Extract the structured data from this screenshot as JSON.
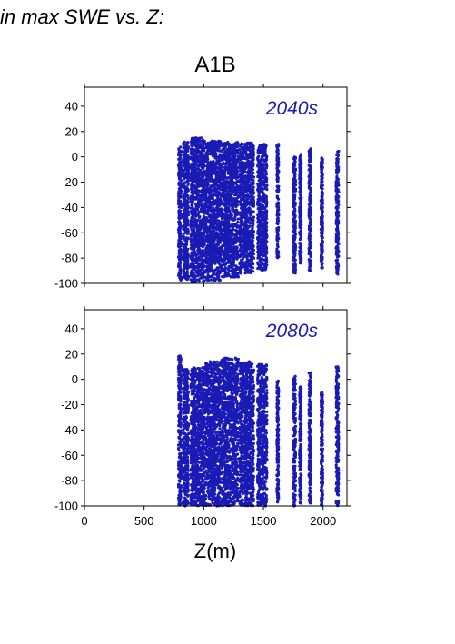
{
  "heading": "in max SWE vs. Z:",
  "scenario": "A1B",
  "accent_color": "#1a1ab4",
  "chart_data": [
    {
      "type": "scatter",
      "annotation": "2040s",
      "xlim": [
        0,
        2200
      ],
      "ylim": [
        -100,
        55
      ],
      "yticks": [
        40,
        20,
        0,
        -20,
        -40,
        -60,
        -80,
        -100
      ],
      "xticks": [
        0,
        500,
        1000,
        1500,
        2000
      ],
      "show_xticklabels": false,
      "xlabel": "",
      "clusters": [
        {
          "x": 800,
          "width": 25,
          "ymin": -98,
          "ymax": 8
        },
        {
          "x": 850,
          "width": 45,
          "ymin": -97,
          "ymax": 12
        },
        {
          "x": 950,
          "width": 120,
          "ymin": -99,
          "ymax": 15
        },
        {
          "x": 1080,
          "width": 130,
          "ymin": -98,
          "ymax": 13
        },
        {
          "x": 1220,
          "width": 140,
          "ymin": -95,
          "ymax": 12
        },
        {
          "x": 1360,
          "width": 120,
          "ymin": -92,
          "ymax": 11
        },
        {
          "x": 1490,
          "width": 80,
          "ymin": -90,
          "ymax": 10
        },
        {
          "x": 1620,
          "width": 15,
          "ymin": -80,
          "ymax": 10
        },
        {
          "x": 1760,
          "width": 20,
          "ymin": -92,
          "ymax": 0
        },
        {
          "x": 1810,
          "width": 15,
          "ymin": -85,
          "ymax": 3
        },
        {
          "x": 1890,
          "width": 18,
          "ymin": -90,
          "ymax": 7
        },
        {
          "x": 1990,
          "width": 15,
          "ymin": -88,
          "ymax": 0
        },
        {
          "x": 2120,
          "width": 22,
          "ymin": -93,
          "ymax": 5
        }
      ]
    },
    {
      "type": "scatter",
      "annotation": "2080s",
      "xlim": [
        0,
        2200
      ],
      "ylim": [
        -100,
        55
      ],
      "yticks": [
        40,
        20,
        0,
        -20,
        -40,
        -60,
        -80,
        -100
      ],
      "xticks": [
        0,
        500,
        1000,
        1500,
        2000
      ],
      "xticklabels": [
        "0",
        "500",
        "1000",
        "1500",
        "2000"
      ],
      "show_xticklabels": true,
      "xlabel": "Z(m)",
      "clusters": [
        {
          "x": 800,
          "width": 25,
          "ymin": -100,
          "ymax": 19
        },
        {
          "x": 850,
          "width": 45,
          "ymin": -100,
          "ymax": 8
        },
        {
          "x": 950,
          "width": 120,
          "ymin": -100,
          "ymax": 10
        },
        {
          "x": 1080,
          "width": 130,
          "ymin": -100,
          "ymax": 14
        },
        {
          "x": 1220,
          "width": 140,
          "ymin": -100,
          "ymax": 17
        },
        {
          "x": 1360,
          "width": 120,
          "ymin": -100,
          "ymax": 14
        },
        {
          "x": 1490,
          "width": 80,
          "ymin": -100,
          "ymax": 12
        },
        {
          "x": 1620,
          "width": 15,
          "ymin": -98,
          "ymax": 0
        },
        {
          "x": 1760,
          "width": 20,
          "ymin": -100,
          "ymax": 3
        },
        {
          "x": 1810,
          "width": 15,
          "ymin": -98,
          "ymax": -5
        },
        {
          "x": 1890,
          "width": 18,
          "ymin": -98,
          "ymax": 6
        },
        {
          "x": 1990,
          "width": 15,
          "ymin": -100,
          "ymax": -10
        },
        {
          "x": 2120,
          "width": 22,
          "ymin": -100,
          "ymax": 10
        }
      ]
    }
  ]
}
